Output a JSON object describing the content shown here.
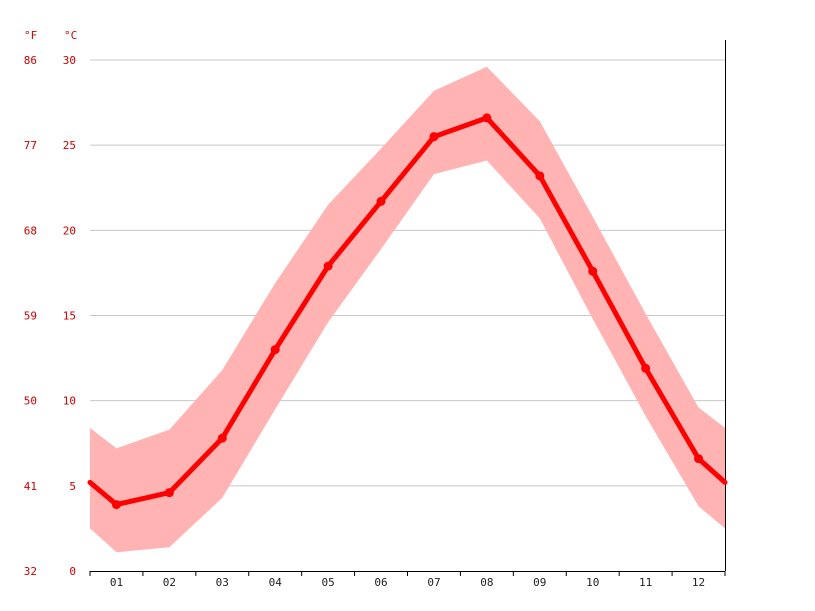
{
  "colors": {
    "line": "#ff0000",
    "band": "#ffb3b3",
    "axis_text_red": "#cc0000",
    "axis_text_dark": "#222222",
    "grid": "#c8c8c8",
    "axis": "#000000"
  },
  "chart_data": {
    "type": "line",
    "title": "",
    "xlabel": "",
    "ylabel": "",
    "units": {
      "fahrenheit": "°F",
      "celsius": "°C"
    },
    "categories": [
      "01",
      "02",
      "03",
      "04",
      "05",
      "06",
      "07",
      "08",
      "09",
      "10",
      "11",
      "12"
    ],
    "ylim": [
      0,
      30
    ],
    "grid": true,
    "y_ticks_celsius": [
      "0",
      "5",
      "10",
      "15",
      "20",
      "25",
      "30"
    ],
    "y_ticks_fahrenheit": [
      "32",
      "41",
      "50",
      "59",
      "68",
      "77",
      "86"
    ],
    "series": [
      {
        "values": [
          3.9,
          4.6,
          7.8,
          13.0,
          17.9,
          21.7,
          25.5,
          26.6,
          23.2,
          17.6,
          11.9,
          6.6
        ],
        "edge_values": [
          5.2,
          5.2
        ]
      }
    ],
    "band": {
      "upper": [
        7.2,
        8.3,
        11.8,
        16.9,
        21.5,
        24.8,
        28.2,
        29.6,
        26.4,
        20.8,
        15.1,
        9.6
      ],
      "lower": [
        1.1,
        1.4,
        4.3,
        9.5,
        14.6,
        18.9,
        23.3,
        24.1,
        20.7,
        14.8,
        9.1,
        3.8
      ],
      "upper_edges": [
        8.4,
        8.4
      ],
      "lower_edges": [
        2.5,
        2.5
      ]
    }
  }
}
